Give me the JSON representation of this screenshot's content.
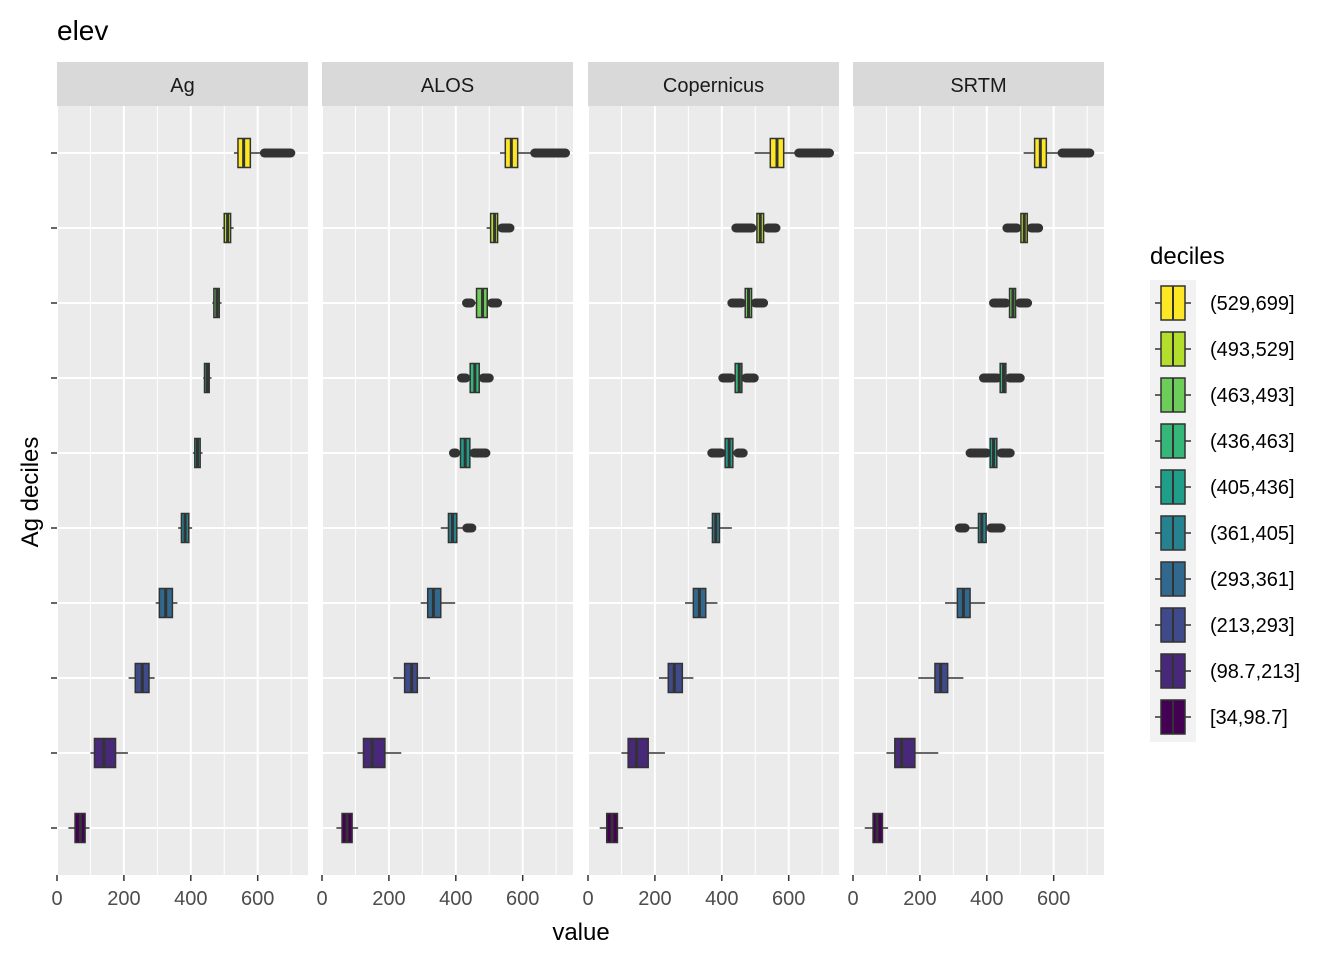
{
  "chart_data": {
    "type": "boxplot",
    "title": "elev",
    "xlabel": "value",
    "ylabel": "Ag deciles",
    "xlim": [
      0,
      750
    ],
    "xticks": [
      0,
      200,
      400,
      600
    ],
    "xtick_labels": [
      "0",
      "200",
      "400",
      "600"
    ],
    "legend": {
      "title": "deciles",
      "position": "right",
      "entries": [
        "(529,699]",
        "(493,529]",
        "(463,493]",
        "(436,463]",
        "(405,436]",
        "(361,405]",
        "(293,361]",
        "(213,293]",
        "(98.7,213]",
        "[34,98.7]"
      ],
      "colors": [
        "#FDE725",
        "#B4DE2C",
        "#6DCD59",
        "#35B779",
        "#1F9E89",
        "#26828E",
        "#31688E",
        "#3E4A89",
        "#482878",
        "#440154"
      ]
    },
    "categories_top_to_bottom": [
      "(529,699]",
      "(493,529]",
      "(463,493]",
      "(436,463]",
      "(405,436]",
      "(361,405]",
      "(293,361]",
      "(213,293]",
      "(98.7,213]",
      "[34,98.7]"
    ],
    "panels": [
      {
        "name": "Ag",
        "boxes": [
          {
            "wlo": 529,
            "q1": 541,
            "med": 558,
            "q3": 578,
            "whi": 618,
            "out": [
              620,
              699
            ]
          },
          {
            "wlo": 494,
            "q1": 500,
            "med": 510,
            "q3": 519,
            "whi": 528,
            "out": null
          },
          {
            "wlo": 464,
            "q1": 469,
            "med": 478,
            "q3": 485,
            "whi": 492,
            "out": null
          },
          {
            "wlo": 437,
            "q1": 441,
            "med": 449,
            "q3": 455,
            "whi": 462,
            "out": null
          },
          {
            "wlo": 406,
            "q1": 412,
            "med": 420,
            "q3": 428,
            "whi": 435,
            "out": null
          },
          {
            "wlo": 362,
            "q1": 372,
            "med": 383,
            "q3": 394,
            "whi": 404,
            "out": null
          },
          {
            "wlo": 295,
            "q1": 306,
            "med": 325,
            "q3": 345,
            "whi": 360,
            "out": null
          },
          {
            "wlo": 214,
            "q1": 234,
            "med": 255,
            "q3": 275,
            "whi": 292,
            "out": null
          },
          {
            "wlo": 100,
            "q1": 112,
            "med": 140,
            "q3": 175,
            "whi": 212,
            "out": null
          },
          {
            "wlo": 34,
            "q1": 54,
            "med": 70,
            "q3": 84,
            "whi": 97,
            "out": null
          }
        ]
      },
      {
        "name": "ALOS",
        "boxes": [
          {
            "wlo": 532,
            "q1": 548,
            "med": 566,
            "q3": 585,
            "whi": 632,
            "out": [
              636,
              728
            ]
          },
          {
            "wlo": 492,
            "q1": 504,
            "med": 516,
            "q3": 525,
            "whi": 535,
            "out": [
              538,
              562
            ]
          },
          {
            "wlo": 446,
            "q1": 462,
            "med": 480,
            "q3": 494,
            "whi": 505,
            "out": [
              432,
              445,
              507,
              525
            ]
          },
          {
            "wlo": 432,
            "q1": 443,
            "med": 457,
            "q3": 470,
            "whi": 480,
            "out": [
              417,
              430,
              482,
              500
            ]
          },
          {
            "wlo": 400,
            "q1": 414,
            "med": 428,
            "q3": 442,
            "whi": 452,
            "out": [
              393,
              400,
              454,
              490
            ]
          },
          {
            "wlo": 355,
            "q1": 378,
            "med": 390,
            "q3": 403,
            "whi": 430,
            "out": [
              433,
              448
            ]
          },
          {
            "wlo": 295,
            "q1": 316,
            "med": 333,
            "q3": 355,
            "whi": 398,
            "out": null
          },
          {
            "wlo": 213,
            "q1": 247,
            "med": 268,
            "q3": 285,
            "whi": 323,
            "out": null
          },
          {
            "wlo": 106,
            "q1": 124,
            "med": 150,
            "q3": 188,
            "whi": 237,
            "out": null
          },
          {
            "wlo": 43,
            "q1": 60,
            "med": 75,
            "q3": 90,
            "whi": 108,
            "out": null
          }
        ]
      },
      {
        "name": "Copernicus",
        "boxes": [
          {
            "wlo": 498,
            "q1": 545,
            "med": 565,
            "q3": 585,
            "whi": 626,
            "out": [
              630,
              722
            ]
          },
          {
            "wlo": 494,
            "q1": 505,
            "med": 515,
            "q3": 525,
            "whi": 535,
            "out": [
              442,
              490,
              537,
              562
            ]
          },
          {
            "wlo": 462,
            "q1": 470,
            "med": 480,
            "q3": 489,
            "whi": 498,
            "out": [
              430,
              459,
              500,
              525
            ]
          },
          {
            "wlo": 430,
            "q1": 440,
            "med": 452,
            "q3": 460,
            "whi": 470,
            "out": [
              403,
              428,
              472,
              497
            ]
          },
          {
            "wlo": 400,
            "q1": 410,
            "med": 422,
            "q3": 433,
            "whi": 445,
            "out": [
              370,
              398,
              448,
              464
            ]
          },
          {
            "wlo": 357,
            "q1": 372,
            "med": 382,
            "q3": 393,
            "whi": 430,
            "out": null
          },
          {
            "wlo": 290,
            "q1": 315,
            "med": 333,
            "q3": 352,
            "whi": 387,
            "out": null
          },
          {
            "wlo": 212,
            "q1": 240,
            "med": 258,
            "q3": 282,
            "whi": 315,
            "out": null
          },
          {
            "wlo": 100,
            "q1": 120,
            "med": 145,
            "q3": 180,
            "whi": 230,
            "out": null
          },
          {
            "wlo": 35,
            "q1": 56,
            "med": 72,
            "q3": 88,
            "whi": 105,
            "out": null
          }
        ]
      },
      {
        "name": "SRTM",
        "boxes": [
          {
            "wlo": 510,
            "q1": 543,
            "med": 560,
            "q3": 578,
            "whi": 620,
            "out": [
              625,
              708
            ]
          },
          {
            "wlo": 493,
            "q1": 502,
            "med": 512,
            "q3": 521,
            "whi": 530,
            "out": [
              460,
              490,
              533,
              555
            ]
          },
          {
            "wlo": 460,
            "q1": 468,
            "med": 478,
            "q3": 486,
            "whi": 495,
            "out": [
              420,
              457,
              498,
              522
            ]
          },
          {
            "wlo": 435,
            "q1": 440,
            "med": 450,
            "q3": 457,
            "whi": 466,
            "out": [
              390,
              432,
              468,
              500
            ]
          },
          {
            "wlo": 405,
            "q1": 410,
            "med": 420,
            "q3": 430,
            "whi": 440,
            "out": [
              350,
              400,
              443,
              470
            ]
          },
          {
            "wlo": 340,
            "q1": 375,
            "med": 385,
            "q3": 398,
            "whi": 410,
            "out": [
              318,
              335,
              412,
              443
            ]
          },
          {
            "wlo": 275,
            "q1": 312,
            "med": 330,
            "q3": 350,
            "whi": 395,
            "out": null
          },
          {
            "wlo": 195,
            "q1": 245,
            "med": 262,
            "q3": 283,
            "whi": 330,
            "out": null
          },
          {
            "wlo": 100,
            "q1": 125,
            "med": 145,
            "q3": 185,
            "whi": 255,
            "out": null
          },
          {
            "wlo": 35,
            "q1": 60,
            "med": 72,
            "q3": 88,
            "whi": 105,
            "out": null
          }
        ]
      }
    ]
  }
}
